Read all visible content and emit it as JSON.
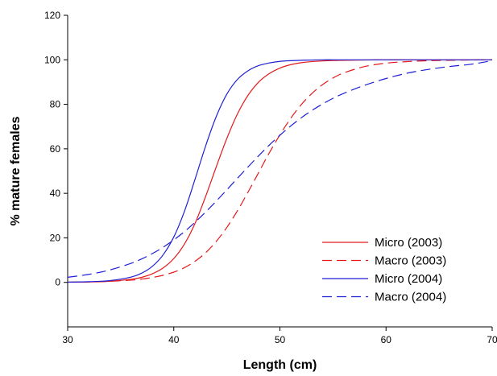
{
  "chart_data": {
    "type": "line",
    "title": "",
    "xlabel": "Length (cm)",
    "ylabel": "% mature females",
    "xlim": [
      30,
      70
    ],
    "ylim": [
      -20,
      120
    ],
    "xticks": [
      30,
      40,
      50,
      60,
      70
    ],
    "yticks": [
      0,
      20,
      40,
      60,
      80,
      100,
      120
    ],
    "grid": false,
    "legend_position": "bottom-right",
    "x": [
      30,
      32,
      34,
      36,
      37,
      38,
      39,
      40,
      41,
      42,
      43,
      44,
      45,
      46,
      47,
      48,
      49,
      50,
      51,
      52,
      53,
      54,
      55,
      56,
      58,
      60,
      62,
      64,
      66,
      68,
      70
    ],
    "series": [
      {
        "name": "Micro (2003)",
        "color": "#e31a1c",
        "dash": "solid",
        "values": [
          0.1,
          0.2,
          0.5,
          1.4,
          2.3,
          3.9,
          6.5,
          10.7,
          17.2,
          26.5,
          38.6,
          51.9,
          64.7,
          75.7,
          84.1,
          90.0,
          93.8,
          96.3,
          97.8,
          98.7,
          99.2,
          99.5,
          99.7,
          99.8,
          99.9,
          100,
          100,
          100,
          100,
          100,
          100
        ]
      },
      {
        "name": "Macro (2003)",
        "color": "#e31a1c",
        "dash": "dashed",
        "values": [
          0.1,
          0.2,
          0.5,
          1.0,
          1.5,
          2.2,
          3.2,
          4.6,
          6.6,
          9.5,
          13.3,
          18.4,
          24.7,
          32.2,
          40.6,
          49.4,
          58.2,
          66.3,
          73.6,
          79.8,
          84.8,
          88.8,
          91.8,
          94.1,
          97.0,
          98.5,
          99.2,
          99.6,
          99.8,
          99.9,
          100
        ]
      },
      {
        "name": "Micro (2004)",
        "color": "#1f1fd6",
        "dash": "solid",
        "values": [
          0.1,
          0.3,
          0.8,
          2.4,
          4.2,
          7.3,
          12.4,
          20.4,
          31.9,
          46.3,
          61.3,
          74.5,
          84.6,
          91.2,
          95.1,
          97.4,
          98.6,
          99.3,
          99.6,
          99.8,
          99.9,
          100,
          100,
          100,
          100,
          100,
          100,
          100,
          100,
          100,
          100
        ]
      },
      {
        "name": "Macro (2004)",
        "color": "#1f1fd6",
        "dash": "dashed",
        "values": [
          2.3,
          3.6,
          5.6,
          8.6,
          10.6,
          13.0,
          15.8,
          19.1,
          22.8,
          27.0,
          31.6,
          36.5,
          41.6,
          46.8,
          51.9,
          56.9,
          61.7,
          66.1,
          70.2,
          73.9,
          77.2,
          80.1,
          82.7,
          84.9,
          88.6,
          91.6,
          94.0,
          95.7,
          97.0,
          98.0,
          99.6
        ]
      }
    ]
  }
}
